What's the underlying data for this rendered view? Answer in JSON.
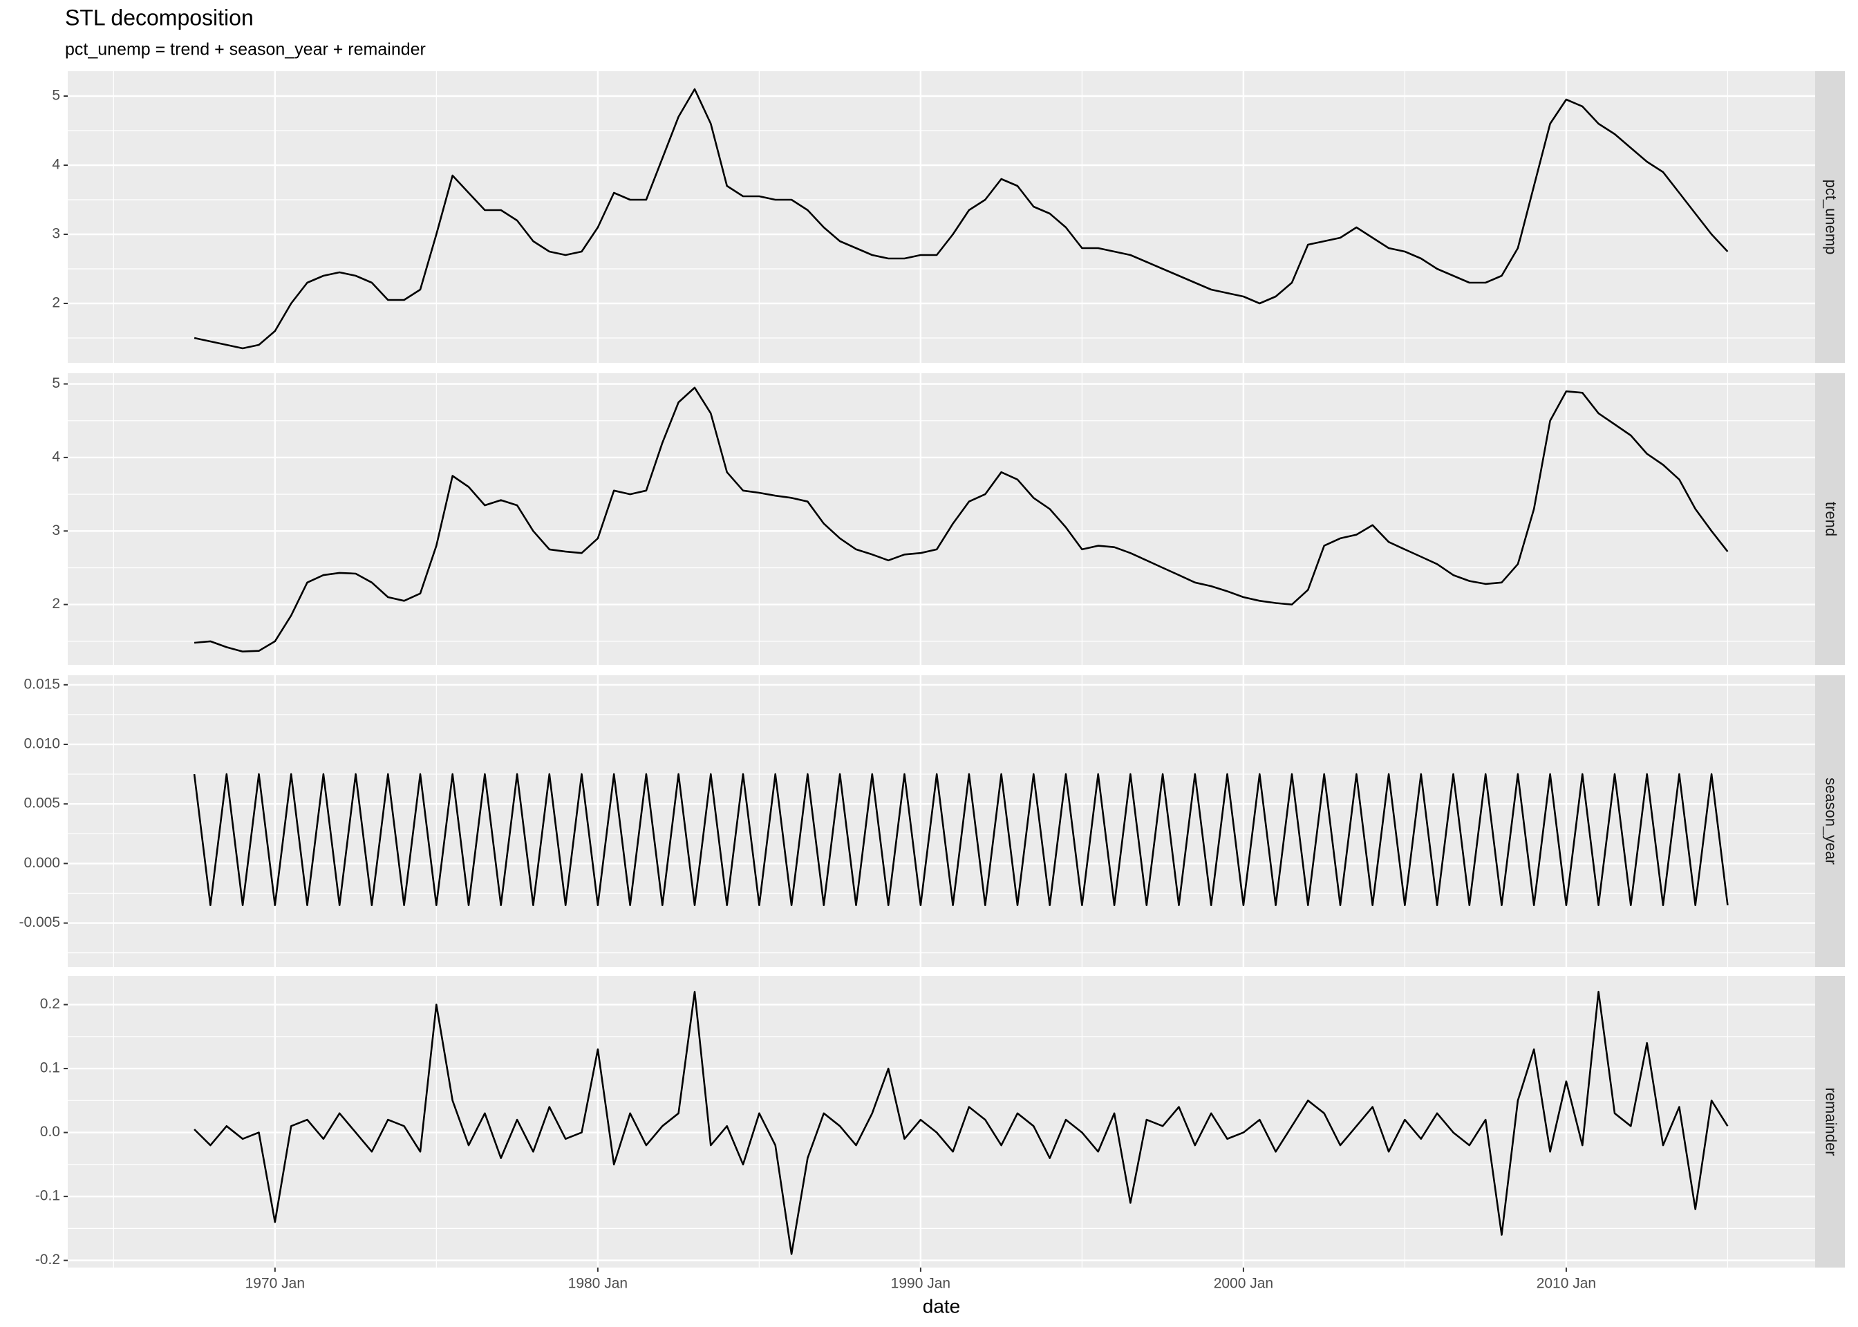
{
  "chart_data": {
    "type": "line",
    "title": "STL decomposition",
    "subtitle": "pct_unemp = trend + season_year + remainder",
    "xlabel": "date",
    "color": "#000000",
    "grid": true,
    "xlim": [
      1963.58,
      2017.71
    ],
    "xticks": [
      {
        "value": 1970,
        "label": "1970 Jan"
      },
      {
        "value": 1980,
        "label": "1980 Jan"
      },
      {
        "value": 1990,
        "label": "1990 Jan"
      },
      {
        "value": 2000,
        "label": "2000 Jan"
      },
      {
        "value": 2010,
        "label": "2010 Jan"
      }
    ],
    "x": [
      1967.5,
      1968,
      1968.5,
      1969,
      1969.5,
      1970,
      1970.5,
      1971,
      1971.5,
      1972,
      1972.5,
      1973,
      1973.5,
      1974,
      1974.5,
      1975,
      1975.5,
      1976,
      1976.5,
      1977,
      1977.5,
      1978,
      1978.5,
      1979,
      1979.5,
      1980,
      1980.5,
      1981,
      1981.5,
      1982,
      1982.5,
      1983,
      1983.5,
      1984,
      1984.5,
      1985,
      1985.5,
      1986,
      1986.5,
      1987,
      1987.5,
      1988,
      1988.5,
      1989,
      1989.5,
      1990,
      1990.5,
      1991,
      1991.5,
      1992,
      1992.5,
      1993,
      1993.5,
      1994,
      1994.5,
      1995,
      1995.5,
      1996,
      1996.5,
      1997,
      1997.5,
      1998,
      1998.5,
      1999,
      1999.5,
      2000,
      2000.5,
      2001,
      2001.5,
      2002,
      2002.5,
      2003,
      2003.5,
      2004,
      2004.5,
      2005,
      2005.5,
      2006,
      2006.5,
      2007,
      2007.5,
      2008,
      2008.5,
      2009,
      2009.5,
      2010,
      2010.5,
      2011,
      2011.5,
      2012,
      2012.5,
      2013,
      2013.5,
      2014,
      2014.5,
      2015
    ],
    "facets": [
      {
        "name": "pct_unemp",
        "ylim": [
          1.14,
          5.36
        ],
        "yticks": [
          2,
          3,
          4,
          5
        ],
        "values": [
          1.5,
          1.45,
          1.4,
          1.35,
          1.4,
          1.6,
          2.0,
          2.3,
          2.4,
          2.45,
          2.4,
          2.3,
          2.05,
          2.05,
          2.2,
          3.0,
          3.85,
          3.6,
          3.35,
          3.35,
          3.2,
          2.9,
          2.75,
          2.7,
          2.75,
          3.1,
          3.6,
          3.5,
          3.5,
          4.1,
          4.7,
          5.1,
          4.6,
          3.7,
          3.55,
          3.55,
          3.5,
          3.5,
          3.35,
          3.1,
          2.9,
          2.8,
          2.7,
          2.65,
          2.65,
          2.7,
          2.7,
          3.0,
          3.35,
          3.5,
          3.8,
          3.7,
          3.4,
          3.3,
          3.1,
          2.8,
          2.8,
          2.75,
          2.7,
          2.6,
          2.5,
          2.4,
          2.3,
          2.2,
          2.15,
          2.1,
          2.0,
          2.1,
          2.3,
          2.85,
          2.9,
          2.95,
          3.1,
          2.95,
          2.8,
          2.75,
          2.65,
          2.5,
          2.4,
          2.3,
          2.3,
          2.4,
          2.8,
          3.7,
          4.6,
          4.95,
          4.85,
          4.6,
          4.45,
          4.25,
          4.05,
          3.9,
          3.6,
          3.3,
          3.0,
          2.75
        ]
      },
      {
        "name": "trend",
        "ylim": [
          1.179,
          5.146
        ],
        "yticks": [
          2,
          3,
          4,
          5
        ],
        "values": [
          1.48,
          1.5,
          1.42,
          1.36,
          1.37,
          1.5,
          1.85,
          2.3,
          2.4,
          2.43,
          2.42,
          2.3,
          2.1,
          2.05,
          2.15,
          2.8,
          3.75,
          3.6,
          3.35,
          3.42,
          3.35,
          3.0,
          2.75,
          2.72,
          2.7,
          2.9,
          3.55,
          3.5,
          3.55,
          4.2,
          4.75,
          4.95,
          4.6,
          3.8,
          3.55,
          3.52,
          3.48,
          3.45,
          3.4,
          3.1,
          2.9,
          2.75,
          2.68,
          2.6,
          2.68,
          2.7,
          2.75,
          3.1,
          3.4,
          3.5,
          3.8,
          3.7,
          3.45,
          3.3,
          3.05,
          2.75,
          2.8,
          2.78,
          2.7,
          2.6,
          2.5,
          2.4,
          2.3,
          2.25,
          2.18,
          2.1,
          2.05,
          2.02,
          2.0,
          2.2,
          2.8,
          2.9,
          2.95,
          3.08,
          2.85,
          2.75,
          2.65,
          2.55,
          2.4,
          2.32,
          2.28,
          2.3,
          2.55,
          3.3,
          4.5,
          4.9,
          4.88,
          4.6,
          4.45,
          4.3,
          4.05,
          3.9,
          3.7,
          3.3,
          3.0,
          2.72
        ]
      },
      {
        "name": "season_year",
        "ylim": [
          -0.00868,
          0.0158
        ],
        "yticks": [
          {
            "value": -0.005,
            "label": "-0.005"
          },
          {
            "value": 0,
            "label": "0.000"
          },
          {
            "value": 0.005,
            "label": "0.005"
          },
          {
            "value": 0.01,
            "label": "0.010"
          },
          {
            "value": 0.015,
            "label": "0.015"
          }
        ],
        "values": [
          0.0075,
          -0.0035,
          0.0075,
          -0.0035,
          0.0075,
          -0.0035,
          0.0075,
          -0.0035,
          0.0075,
          -0.0035,
          0.0075,
          -0.0035,
          0.0075,
          -0.0035,
          0.0075,
          -0.0035,
          0.0075,
          -0.0035,
          0.0075,
          -0.0035,
          0.0075,
          -0.0035,
          0.0075,
          -0.0035,
          0.0075,
          -0.0035,
          0.0075,
          -0.0035,
          0.0075,
          -0.0035,
          0.0075,
          -0.0035,
          0.0075,
          -0.0035,
          0.0075,
          -0.0035,
          0.0075,
          -0.0035,
          0.0075,
          -0.0035,
          0.0075,
          -0.0035,
          0.0075,
          -0.0035,
          0.0075,
          -0.0035,
          0.0075,
          -0.0035,
          0.0075,
          -0.0035,
          0.0075,
          -0.0035,
          0.0075,
          -0.0035,
          0.0075,
          -0.0035,
          0.0075,
          -0.0035,
          0.0075,
          -0.0035,
          0.0075,
          -0.0035,
          0.0075,
          -0.0035,
          0.0075,
          -0.0035,
          0.0075,
          -0.0035,
          0.0075,
          -0.0035,
          0.0075,
          -0.0035,
          0.0075,
          -0.0035,
          0.0075,
          -0.0035,
          0.0075,
          -0.0035,
          0.0075,
          -0.0035,
          0.0075,
          -0.0035,
          0.0075,
          -0.0035,
          0.0075,
          -0.0035,
          0.0075,
          -0.0035,
          0.0075,
          -0.0035,
          0.0075,
          -0.0035,
          0.0075,
          -0.0035,
          0.0075,
          -0.0035
        ]
      },
      {
        "name": "remainder",
        "ylim": [
          -0.2112,
          0.2449
        ],
        "yticks": [
          -0.2,
          -0.1,
          {
            "value": 0,
            "label": "0.0"
          },
          0.1,
          0.2
        ],
        "values": [
          0.005,
          -0.02,
          0.01,
          -0.01,
          0.0,
          -0.14,
          0.01,
          0.02,
          -0.01,
          0.03,
          0.0,
          -0.03,
          0.02,
          0.01,
          -0.03,
          0.2,
          0.05,
          -0.02,
          0.03,
          -0.04,
          0.02,
          -0.03,
          0.04,
          -0.01,
          0.0,
          0.13,
          -0.05,
          0.03,
          -0.02,
          0.01,
          0.03,
          0.22,
          -0.02,
          0.01,
          -0.05,
          0.03,
          -0.02,
          -0.19,
          -0.04,
          0.03,
          0.01,
          -0.02,
          0.03,
          0.1,
          -0.01,
          0.02,
          0.0,
          -0.03,
          0.04,
          0.02,
          -0.02,
          0.03,
          0.01,
          -0.04,
          0.02,
          0.0,
          -0.03,
          0.03,
          -0.11,
          0.02,
          0.01,
          0.04,
          -0.02,
          0.03,
          -0.01,
          0.0,
          0.02,
          -0.03,
          0.01,
          0.05,
          0.03,
          -0.02,
          0.01,
          0.04,
          -0.03,
          0.02,
          -0.01,
          0.03,
          0.0,
          -0.02,
          0.02,
          -0.16,
          0.05,
          0.13,
          -0.03,
          0.08,
          -0.02,
          0.22,
          0.03,
          0.01,
          0.14,
          -0.02,
          0.04,
          -0.12,
          0.05,
          0.01
        ]
      }
    ]
  }
}
